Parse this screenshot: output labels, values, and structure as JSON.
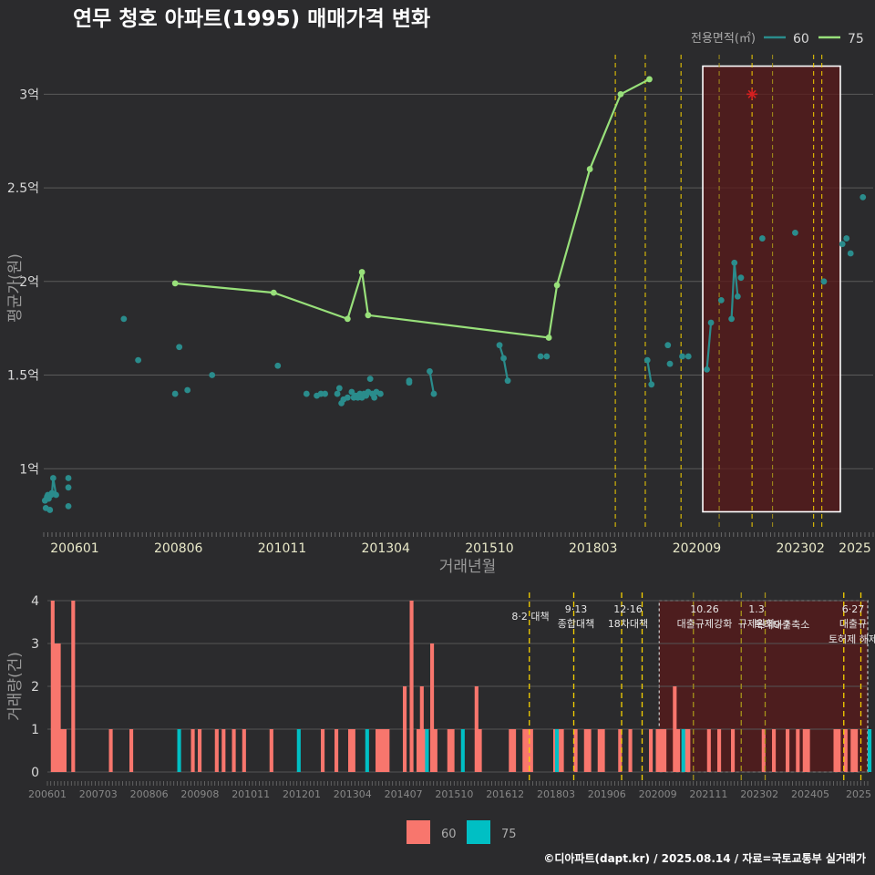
{
  "title": "연무 청호 아파트(1995) 매매가격 변화",
  "footer": "©디아파트(dapt.kr) / 2025.08.14 / 자료=국토교통부 실거래가",
  "colors": {
    "bg": "#2b2b2d",
    "s60": "#2a8c8c",
    "s75": "#98e07a",
    "bar60": "#f8766d",
    "bar75": "#00bfc4",
    "policy": "#f5d000",
    "region": "#5a1a1a",
    "star": "#d62020"
  },
  "chart_data": [
    {
      "type": "line",
      "title": "연무 청호 아파트(1995) 매매가격 변화",
      "xlabel": "거래년월",
      "ylabel": "평균가(원)",
      "ylim": [
        0.68,
        3.25
      ],
      "y_unit": "억",
      "y_ticks": [
        {
          "v": 1,
          "label": "1억"
        },
        {
          "v": 1.5,
          "label": "1.5억"
        },
        {
          "v": 2,
          "label": "2억"
        },
        {
          "v": 2.5,
          "label": "2.5억"
        },
        {
          "v": 3,
          "label": "3억"
        }
      ],
      "x_ticks": [
        "200601",
        "200806",
        "201011",
        "201304",
        "201510",
        "201803",
        "202009",
        "202302",
        "2025"
      ],
      "legend_title": "전용면적(㎡)",
      "legend": [
        "60",
        "75"
      ],
      "legend_position": "top-right",
      "policy_lines": [
        139.2,
        146.5,
        155.2,
        172.5,
        187.5,
        189.5
      ],
      "policy_lines_faint": [
        164.5,
        177.5
      ],
      "highlight_region": {
        "x": [
          160.5,
          194.0
        ],
        "y": [
          0.77,
          3.15
        ]
      },
      "red_star": {
        "x": 172.5,
        "y": 3.0
      },
      "series": [
        {
          "name": "60",
          "points": [
            [
              0.3,
              0.83
            ],
            [
              0.5,
              0.79
            ],
            [
              0.8,
              0.85
            ],
            [
              1.0,
              0.86
            ],
            [
              1.2,
              0.84
            ],
            [
              1.5,
              0.78
            ],
            [
              1.8,
              0.86
            ],
            [
              2.0,
              0.87
            ],
            [
              2.3,
              0.95
            ],
            [
              3.0,
              0.86
            ],
            [
              6.0,
              0.95
            ],
            [
              6.0,
              0.9
            ],
            [
              6.0,
              0.8
            ],
            [
              19.5,
              1.8
            ],
            [
              23.0,
              1.58
            ],
            [
              32.0,
              1.4
            ],
            [
              33.0,
              1.65
            ],
            [
              35.0,
              1.42
            ],
            [
              41.0,
              1.5
            ],
            [
              57.0,
              1.55
            ],
            [
              64.0,
              1.4
            ],
            [
              66.5,
              1.39
            ],
            [
              67.5,
              1.4
            ],
            [
              68.5,
              1.4
            ],
            [
              71.5,
              1.4
            ],
            [
              72.0,
              1.43
            ],
            [
              72.5,
              1.35
            ],
            [
              73.0,
              1.37
            ],
            [
              74.0,
              1.38
            ],
            [
              75.0,
              1.41
            ],
            [
              75.5,
              1.38
            ],
            [
              76.0,
              1.39
            ],
            [
              76.5,
              1.38
            ],
            [
              77.0,
              1.4
            ],
            [
              77.5,
              1.38
            ],
            [
              78.0,
              1.4
            ],
            [
              78.5,
              1.39
            ],
            [
              79.0,
              1.41
            ],
            [
              79.5,
              1.48
            ],
            [
              80.0,
              1.4
            ],
            [
              80.5,
              1.38
            ],
            [
              81.0,
              1.41
            ],
            [
              82.0,
              1.4
            ],
            [
              89.0,
              1.47
            ],
            [
              89.0,
              1.46
            ],
            [
              94.0,
              1.52
            ],
            [
              95.0,
              1.4
            ],
            [
              111.0,
              1.66
            ],
            [
              112.0,
              1.59
            ],
            [
              113.0,
              1.47
            ],
            [
              121.0,
              1.6
            ],
            [
              122.5,
              1.6
            ],
            [
              147.0,
              1.58
            ],
            [
              148.0,
              1.45
            ],
            [
              152.0,
              1.66
            ],
            [
              152.5,
              1.56
            ],
            [
              155.5,
              1.6
            ],
            [
              157.0,
              1.6
            ],
            [
              161.5,
              1.53
            ],
            [
              162.5,
              1.78
            ],
            [
              165.0,
              1.9
            ],
            [
              167.5,
              1.8
            ],
            [
              168.2,
              2.1
            ],
            [
              169.0,
              1.92
            ],
            [
              169.8,
              2.02
            ],
            [
              175.0,
              2.23
            ],
            [
              183.0,
              2.26
            ],
            [
              190.0,
              2.0
            ],
            [
              194.5,
              2.2
            ],
            [
              195.5,
              2.23
            ],
            [
              196.5,
              2.15
            ],
            [
              199.5,
              2.45
            ]
          ],
          "connected_runs": [
            [
              2.0,
              2.3,
              3.0
            ],
            [
              111.0,
              112.0,
              113.0
            ],
            [
              147.0,
              148.0
            ],
            [
              161.5,
              162.5
            ],
            [
              167.5,
              168.2,
              169.0
            ],
            [
              94.0,
              95.0
            ]
          ]
        },
        {
          "name": "75",
          "points": [
            [
              32.0,
              1.99
            ],
            [
              56.0,
              1.94
            ],
            [
              74.0,
              1.8
            ],
            [
              77.5,
              2.05
            ],
            [
              79.0,
              1.82
            ],
            [
              123.0,
              1.7
            ],
            [
              125.0,
              1.98
            ],
            [
              133.0,
              2.6
            ],
            [
              140.5,
              3.0
            ],
            [
              147.5,
              3.08
            ]
          ]
        }
      ]
    },
    {
      "type": "bar",
      "title": "",
      "xlabel": "",
      "ylabel": "거래량(건)",
      "ylim": [
        0,
        4
      ],
      "y_ticks": [
        0,
        1,
        2,
        3,
        4
      ],
      "x_ticks": [
        "200601",
        "200703",
        "200806",
        "200908",
        "201011",
        "201201",
        "201304",
        "201407",
        "201510",
        "201612",
        "201803",
        "201906",
        "202009",
        "202111",
        "202302",
        "202405",
        "2025"
      ],
      "legend": [
        "60",
        "75"
      ],
      "legend_position": "bottom",
      "annotations": [
        {
          "x": 139.2,
          "lines": [
            "8·2 대책"
          ]
        },
        {
          "x": 150.5,
          "lines": [
            "9·13",
            "종합대책"
          ]
        },
        {
          "x": 164.0,
          "lines": [
            "12·16",
            "18차대책"
          ]
        },
        {
          "x": 184.0,
          "lines": [
            "10.26",
            "대출규제강화"
          ]
        },
        {
          "x": 196.5,
          "lines": [
            "1.3",
            "규제완화"
          ]
        },
        {
          "x": 206.5,
          "lines": [
            "9·7",
            "특례대출축소"
          ]
        },
        {
          "x": 226.0,
          "lines": [
            "6·27",
            "대출규",
            "토허제 해제"
          ]
        }
      ],
      "bars_60": [
        [
          1,
          4
        ],
        [
          2,
          3
        ],
        [
          2.8,
          3
        ],
        [
          3.5,
          1
        ],
        [
          4.5,
          1
        ],
        [
          7,
          4
        ],
        [
          18,
          1
        ],
        [
          24,
          1
        ],
        [
          42,
          1
        ],
        [
          44,
          1
        ],
        [
          49,
          1
        ],
        [
          51,
          1
        ],
        [
          54,
          1
        ],
        [
          57,
          1
        ],
        [
          65,
          1
        ],
        [
          80,
          1
        ],
        [
          84,
          1
        ],
        [
          88,
          1
        ],
        [
          89,
          1
        ],
        [
          96,
          1
        ],
        [
          97,
          1
        ],
        [
          98,
          1
        ],
        [
          99,
          1
        ],
        [
          104,
          2
        ],
        [
          106,
          4
        ],
        [
          108,
          1
        ],
        [
          109,
          2
        ],
        [
          110,
          1
        ],
        [
          112,
          3
        ],
        [
          113,
          1
        ],
        [
          117,
          1
        ],
        [
          118,
          1
        ],
        [
          125,
          2
        ],
        [
          126,
          1
        ],
        [
          135,
          1
        ],
        [
          136,
          1
        ],
        [
          139,
          1
        ],
        [
          140,
          1
        ],
        [
          141,
          1
        ],
        [
          148,
          1
        ],
        [
          149,
          1
        ],
        [
          150,
          1
        ],
        [
          154,
          1
        ],
        [
          157,
          1
        ],
        [
          158,
          1
        ],
        [
          161,
          1
        ],
        [
          162,
          1
        ],
        [
          167,
          1
        ],
        [
          170,
          1
        ],
        [
          176,
          1
        ],
        [
          178,
          1
        ],
        [
          179,
          1
        ],
        [
          180,
          1
        ],
        [
          183,
          2
        ],
        [
          184,
          1
        ],
        [
          186,
          1
        ],
        [
          187,
          1
        ],
        [
          193,
          1
        ],
        [
          196,
          1
        ],
        [
          200,
          1
        ],
        [
          209,
          1
        ],
        [
          212,
          1
        ],
        [
          216,
          1
        ],
        [
          219,
          1
        ],
        [
          221,
          1
        ],
        [
          222,
          1
        ],
        [
          230,
          1
        ],
        [
          231,
          1
        ],
        [
          233,
          1
        ],
        [
          235,
          1
        ],
        [
          236,
          1
        ]
      ],
      "bars_75": [
        [
          38,
          1
        ],
        [
          73,
          1
        ],
        [
          93,
          1
        ],
        [
          110.5,
          1
        ],
        [
          121,
          1
        ],
        [
          148.5,
          1
        ],
        [
          185.5,
          1
        ],
        [
          240,
          1
        ]
      ]
    }
  ],
  "bottom_legend": [
    "60",
    "75"
  ]
}
